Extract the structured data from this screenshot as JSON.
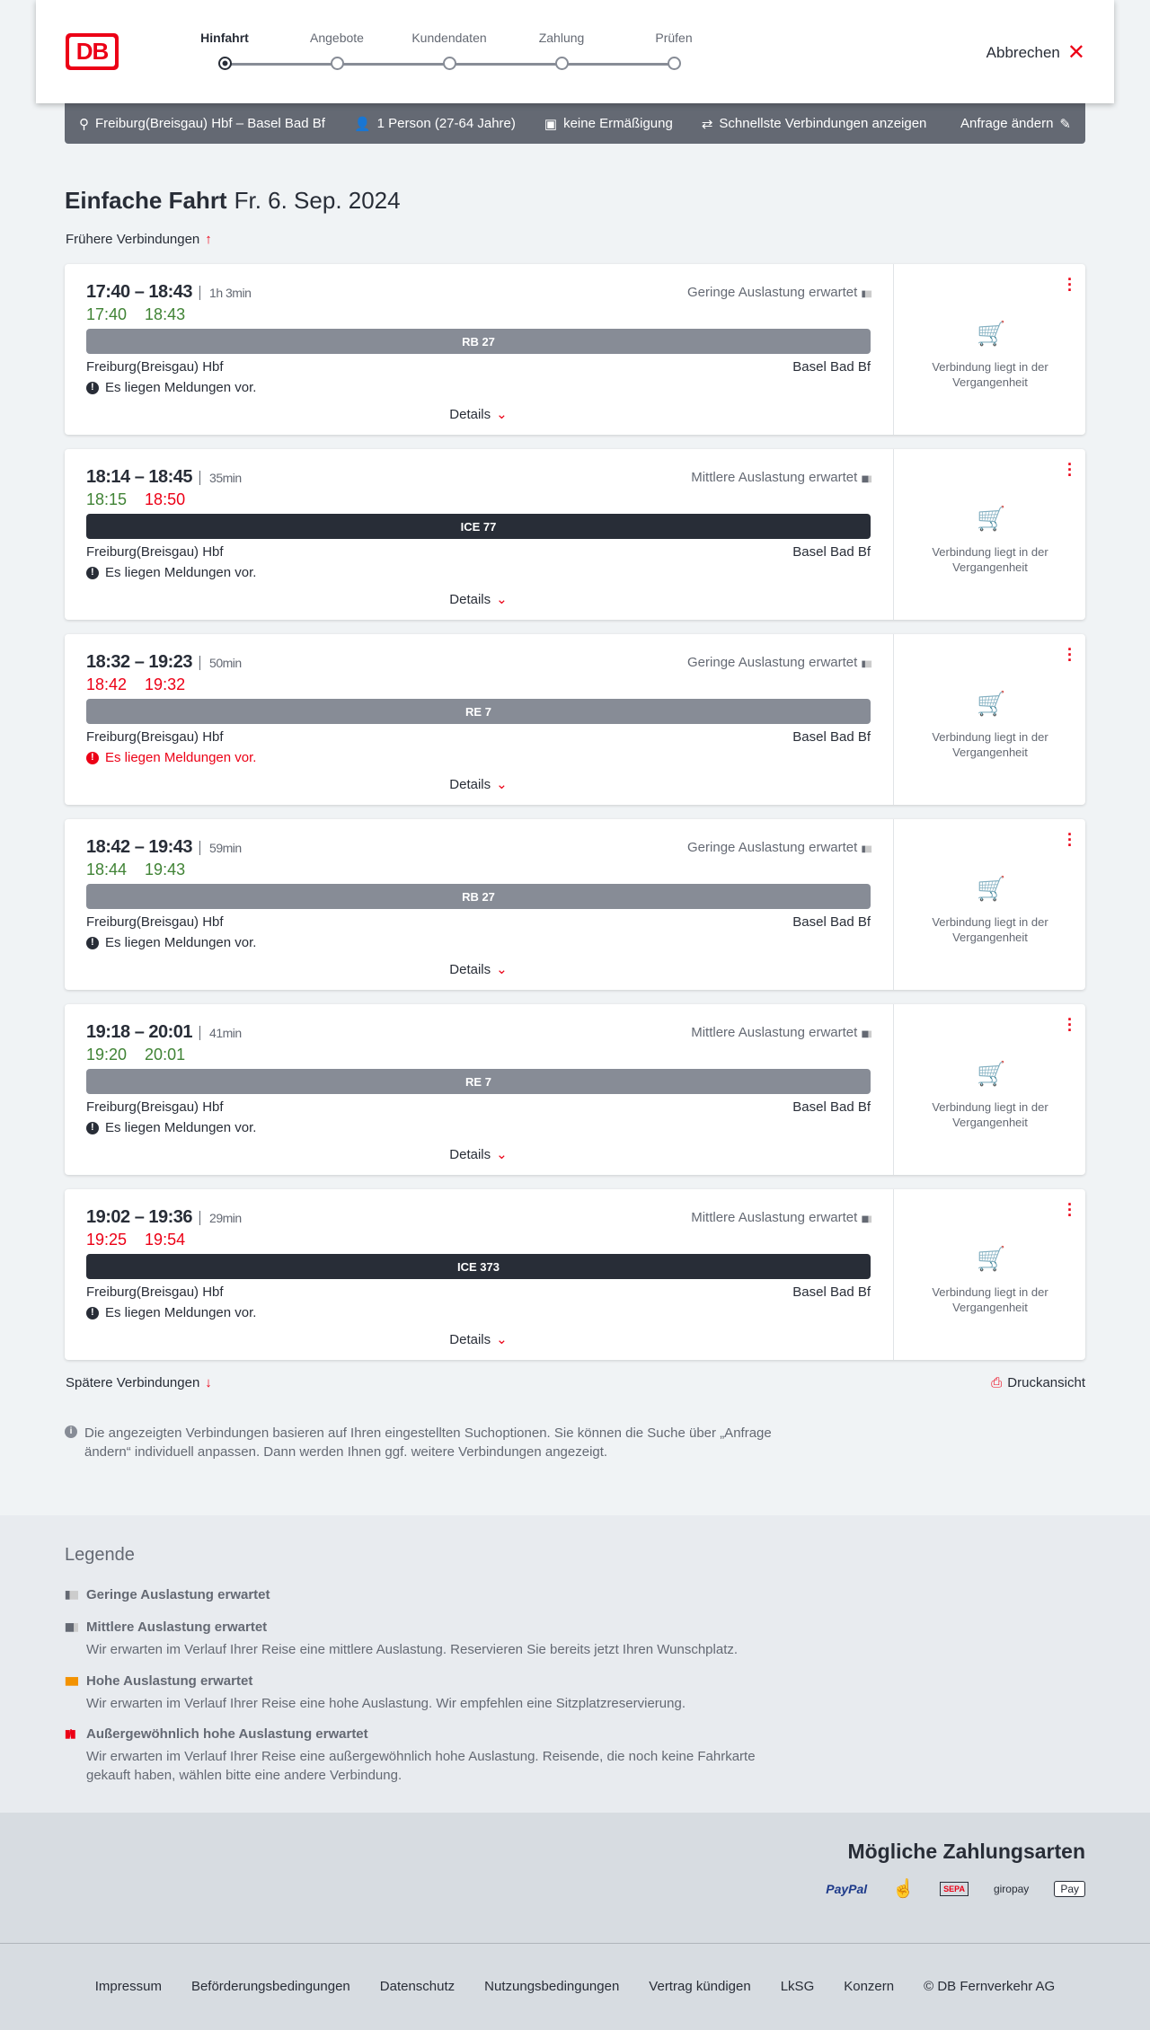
{
  "header": {
    "logo": "DB",
    "steps": [
      "Hinfahrt",
      "Angebote",
      "Kundendaten",
      "Zahlung",
      "Prüfen"
    ],
    "active_step": 0,
    "cancel": "Abbrechen"
  },
  "search": {
    "route": "Freiburg(Breisgau) Hbf – Basel Bad Bf",
    "persons": "1 Person (27-64 Jahre)",
    "discount": "keine Ermäßigung",
    "fastest": "Schnellste Verbindungen anzeigen",
    "edit": "Anfrage ändern"
  },
  "page": {
    "title": "Einfache Fahrt",
    "date": "Fr. 6. Sep. 2024",
    "earlier": "Frühere Verbindungen",
    "later": "Spätere Verbindungen",
    "print": "Druckansicht",
    "note": "Die angezeigten Verbindungen basieren auf Ihren eingestellten Suchoptionen. Sie können die Suche über „Anfrage ändern“ individuell anpassen. Dann werden Ihnen ggf. weitere Verbindungen angezeigt."
  },
  "card_labels": {
    "details": "Details",
    "message": "Es liegen Meldungen vor.",
    "past": "Verbindung liegt in der Vergangenheit",
    "from": "Freiburg(Breisgau) Hbf",
    "to": "Basel Bad Bf"
  },
  "colors": {
    "green": "#408335",
    "red": "#ec0016",
    "regional": "#878c96",
    "ice": "#282d37"
  },
  "connections": [
    {
      "times": "17:40 – 18:43",
      "duration": "1h 3min",
      "load": "Geringe Auslastung erwartet",
      "dep": "17:40",
      "dep_status": "green",
      "arr": "18:43",
      "arr_status": "green",
      "train": "RB 27",
      "train_type": "regional",
      "msg_status": "normal"
    },
    {
      "times": "18:14 – 18:45",
      "duration": "35min",
      "load": "Mittlere Auslastung erwartet",
      "dep": "18:15",
      "dep_status": "green",
      "arr": "18:50",
      "arr_status": "red",
      "train": "ICE 77",
      "train_type": "ice",
      "msg_status": "normal"
    },
    {
      "times": "18:32 – 19:23",
      "duration": "50min",
      "load": "Geringe Auslastung erwartet",
      "dep": "18:42",
      "dep_status": "red",
      "arr": "19:32",
      "arr_status": "red",
      "train": "RE 7",
      "train_type": "regional",
      "msg_status": "red"
    },
    {
      "times": "18:42 – 19:43",
      "duration": "59min",
      "load": "Geringe Auslastung erwartet",
      "dep": "18:44",
      "dep_status": "green",
      "arr": "19:43",
      "arr_status": "green",
      "train": "RB 27",
      "train_type": "regional",
      "msg_status": "normal"
    },
    {
      "times": "19:18 – 20:01",
      "duration": "41min",
      "load": "Mittlere Auslastung erwartet",
      "dep": "19:20",
      "dep_status": "green",
      "arr": "20:01",
      "arr_status": "green",
      "train": "RE 7",
      "train_type": "regional",
      "msg_status": "normal"
    },
    {
      "times": "19:02 – 19:36",
      "duration": "29min",
      "load": "Mittlere Auslastung erwartet",
      "dep": "19:25",
      "dep_status": "red",
      "arr": "19:54",
      "arr_status": "red",
      "train": "ICE 373",
      "train_type": "ice",
      "msg_status": "normal"
    }
  ],
  "legend": {
    "title": "Legende",
    "items": [
      {
        "title": "Geringe Auslastung erwartet",
        "desc": ""
      },
      {
        "title": "Mittlere Auslastung erwartet",
        "desc": "Wir erwarten im Verlauf Ihrer Reise eine mittlere Auslastung. Reservieren Sie bereits jetzt Ihren Wunschplatz."
      },
      {
        "title": "Hohe Auslastung erwartet",
        "desc": "Wir erwarten im Verlauf Ihrer Reise eine hohe Auslastung. Wir empfehlen eine Sitzplatzreservierung."
      },
      {
        "title": "Außergewöhnlich hohe Auslastung erwartet",
        "desc": "Wir erwarten im Verlauf Ihrer Reise eine außergewöhnlich hohe Auslastung. Reisende, die noch keine Fahrkarte gekauft haben, wählen bitte eine andere Verbindung."
      }
    ]
  },
  "payment": {
    "title": "Mögliche Zahlungsarten",
    "methods": [
      "PayPal",
      "SEPA",
      "giropay",
      "Pay"
    ]
  },
  "footer": {
    "links": [
      "Impressum",
      "Beförderungsbedingungen",
      "Datenschutz",
      "Nutzungsbedingungen",
      "Vertrag kündigen",
      "LkSG",
      "Konzern",
      "© DB Fernverkehr AG"
    ]
  }
}
